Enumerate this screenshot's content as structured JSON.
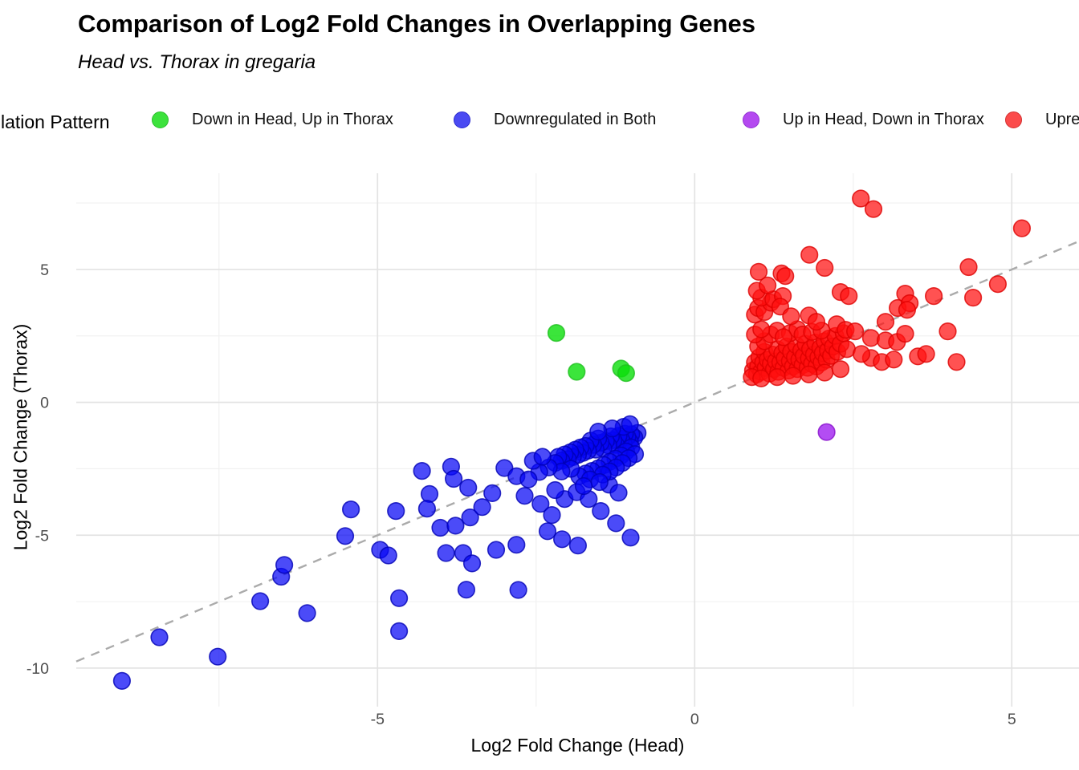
{
  "header": {
    "title": "Comparison of Log2 Fold Changes in Overlapping Genes",
    "subtitle": "Head vs. Thorax in gregaria"
  },
  "legend": {
    "title": "Regulation Pattern",
    "items": [
      {
        "label": "Down in Head, Up in Thorax",
        "swatch": "#3CE23C",
        "swatch_border": "#2FBE2F"
      },
      {
        "label": "Downregulated in Both",
        "swatch": "#4A4AF2",
        "swatch_border": "#2B2BCE"
      },
      {
        "label": "Up in Head, Down in Thorax",
        "swatch": "#B449F0",
        "swatch_border": "#9232D2"
      },
      {
        "label": "Upregulated in Both",
        "swatch": "#FB4B4B",
        "swatch_border": "#D33030"
      }
    ]
  },
  "chart_data": {
    "type": "scatter",
    "title": "Comparison of Log2 Fold Changes in Overlapping Genes",
    "subtitle": "Head vs. Thorax in gregaria",
    "xlabel": "Log2 Fold Change (Head)",
    "ylabel": "Log2 Fold Change (Thorax)",
    "xlim": [
      -9.75,
      6.06
    ],
    "ylim": [
      -11.45,
      8.62
    ],
    "x_ticks": [
      -5,
      0,
      5
    ],
    "x_tick_labels": [
      "-5",
      "0",
      "5"
    ],
    "y_ticks": [
      5,
      0,
      -5,
      -10
    ],
    "y_tick_labels": [
      "5",
      "0",
      "-5",
      "-10"
    ],
    "x_minor_ticks": [
      -7.5,
      -2.5,
      2.5
    ],
    "y_minor_ticks": [
      7.5,
      2.5,
      -2.5,
      -7.5
    ],
    "grid": {
      "major_color": "#E3E3E3",
      "minor_color": "#F0F0F0"
    },
    "tick_label_color": "#4D4D4D",
    "reference_line": {
      "slope": 1,
      "intercept": 0,
      "style": "dashed",
      "color": "#ABABAB"
    },
    "legend_position": "top",
    "series": [
      {
        "name": "Downregulated in Both",
        "fill": "#0505F5",
        "fill_opacity": 0.72,
        "stroke": "#0000B4",
        "points": [
          [
            -9.03,
            -10.48
          ],
          [
            -8.44,
            -8.84
          ],
          [
            -7.52,
            -9.57
          ],
          [
            -6.85,
            -7.48
          ],
          [
            -6.11,
            -7.93
          ],
          [
            -6.52,
            -6.56
          ],
          [
            -6.47,
            -6.12
          ],
          [
            -5.42,
            -4.03
          ],
          [
            -4.71,
            -4.09
          ],
          [
            -5.51,
            -5.03
          ],
          [
            -4.96,
            -5.55
          ],
          [
            -4.83,
            -5.76
          ],
          [
            -4.66,
            -7.37
          ],
          [
            -4.66,
            -8.61
          ],
          [
            -4.3,
            -2.58
          ],
          [
            -3.84,
            -2.42
          ],
          [
            -3.8,
            -2.88
          ],
          [
            -3.57,
            -3.21
          ],
          [
            -4.18,
            -3.45
          ],
          [
            -4.22,
            -4.0
          ],
          [
            -4.01,
            -4.72
          ],
          [
            -3.77,
            -4.64
          ],
          [
            -3.54,
            -4.33
          ],
          [
            -3.35,
            -3.94
          ],
          [
            -3.19,
            -3.42
          ],
          [
            -3.0,
            -2.47
          ],
          [
            -2.81,
            -2.78
          ],
          [
            -2.68,
            -3.52
          ],
          [
            -2.43,
            -3.82
          ],
          [
            -2.25,
            -4.24
          ],
          [
            -2.05,
            -3.64
          ],
          [
            -1.86,
            -3.38
          ],
          [
            -1.67,
            -3.64
          ],
          [
            -1.48,
            -4.09
          ],
          [
            -1.24,
            -4.55
          ],
          [
            -2.32,
            -4.85
          ],
          [
            -2.09,
            -5.15
          ],
          [
            -1.84,
            -5.39
          ],
          [
            -2.81,
            -5.36
          ],
          [
            -3.92,
            -5.67
          ],
          [
            -3.65,
            -5.67
          ],
          [
            -3.13,
            -5.55
          ],
          [
            -3.51,
            -6.06
          ],
          [
            -2.78,
            -7.06
          ],
          [
            -3.6,
            -7.05
          ],
          [
            -1.01,
            -5.09
          ],
          [
            -1.35,
            -3.1
          ],
          [
            -1.2,
            -3.4
          ],
          [
            -0.9,
            -1.15
          ],
          [
            -0.95,
            -1.32
          ],
          [
            -1.0,
            -1.2
          ],
          [
            -1.02,
            -1.48
          ],
          [
            -1.06,
            -1.3
          ],
          [
            -1.1,
            -1.18
          ],
          [
            -1.12,
            -1.55
          ],
          [
            -1.16,
            -1.38
          ],
          [
            -1.2,
            -1.26
          ],
          [
            -1.24,
            -1.6
          ],
          [
            -1.28,
            -1.42
          ],
          [
            -1.32,
            -1.28
          ],
          [
            -1.36,
            -1.62
          ],
          [
            -1.4,
            -1.46
          ],
          [
            -1.44,
            -1.74
          ],
          [
            -1.48,
            -1.52
          ],
          [
            -1.52,
            -1.36
          ],
          [
            -1.56,
            -1.78
          ],
          [
            -1.6,
            -1.6
          ],
          [
            -1.64,
            -1.44
          ],
          [
            -1.68,
            -1.82
          ],
          [
            -1.72,
            -1.64
          ],
          [
            -1.76,
            -1.9
          ],
          [
            -1.8,
            -1.7
          ],
          [
            -1.84,
            -1.98
          ],
          [
            -1.88,
            -1.78
          ],
          [
            -1.92,
            -2.06
          ],
          [
            -1.96,
            -1.88
          ],
          [
            -2.0,
            -2.14
          ],
          [
            -2.05,
            -1.96
          ],
          [
            -2.1,
            -2.2
          ],
          [
            -2.15,
            -2.05
          ],
          [
            -2.2,
            -2.28
          ],
          [
            -1.0,
            -1.7
          ],
          [
            -1.08,
            -1.85
          ],
          [
            -1.16,
            -2.0
          ],
          [
            -1.25,
            -2.12
          ],
          [
            -1.34,
            -2.24
          ],
          [
            -1.43,
            -2.36
          ],
          [
            -1.52,
            -2.48
          ],
          [
            -1.62,
            -2.58
          ],
          [
            -1.72,
            -2.68
          ],
          [
            -1.82,
            -2.78
          ],
          [
            -0.94,
            -1.95
          ],
          [
            -1.04,
            -2.1
          ],
          [
            -1.14,
            -2.28
          ],
          [
            -1.24,
            -2.45
          ],
          [
            -1.34,
            -2.6
          ],
          [
            -1.45,
            -2.72
          ],
          [
            -1.12,
            -0.92
          ],
          [
            -1.3,
            -0.98
          ],
          [
            -1.52,
            -1.1
          ],
          [
            -1.02,
            -0.82
          ],
          [
            -1.65,
            -2.9
          ],
          [
            -1.5,
            -3.0
          ],
          [
            -1.95,
            -2.5
          ],
          [
            -2.1,
            -2.6
          ],
          [
            -2.3,
            -2.45
          ],
          [
            -2.45,
            -2.62
          ],
          [
            -2.55,
            -2.2
          ],
          [
            -2.4,
            -2.05
          ],
          [
            -2.62,
            -2.9
          ],
          [
            -1.75,
            -3.15
          ],
          [
            -2.2,
            -3.3
          ]
        ]
      },
      {
        "name": "Down in Head, Up in Thorax",
        "fill": "#0ADF0A",
        "fill_opacity": 0.8,
        "stroke": "#1FBF1F",
        "points": [
          [
            -2.18,
            2.61
          ],
          [
            -1.86,
            1.15
          ],
          [
            -1.16,
            1.27
          ],
          [
            -1.08,
            1.1
          ]
        ]
      },
      {
        "name": "Up in Head, Down in Thorax",
        "fill": "#A020F0",
        "fill_opacity": 0.8,
        "stroke": "#8812CC",
        "points": [
          [
            2.08,
            -1.12
          ]
        ]
      },
      {
        "name": "Upregulated in Both",
        "fill": "#FF0F0F",
        "fill_opacity": 0.72,
        "stroke": "#DD0000",
        "points": [
          [
            0.92,
            1.2
          ],
          [
            0.95,
            1.5
          ],
          [
            0.98,
            1.05
          ],
          [
            1.0,
            1.35
          ],
          [
            1.02,
            1.7
          ],
          [
            1.05,
            1.15
          ],
          [
            1.08,
            1.5
          ],
          [
            1.1,
            1.9
          ],
          [
            1.12,
            1.3
          ],
          [
            1.15,
            1.6
          ],
          [
            1.18,
            1.08
          ],
          [
            1.2,
            1.45
          ],
          [
            1.22,
            1.8
          ],
          [
            1.25,
            1.25
          ],
          [
            1.28,
            1.55
          ],
          [
            1.3,
            2.0
          ],
          [
            1.32,
            1.15
          ],
          [
            1.35,
            1.5
          ],
          [
            1.38,
            1.85
          ],
          [
            1.4,
            1.3
          ],
          [
            1.42,
            1.65
          ],
          [
            1.45,
            2.1
          ],
          [
            1.48,
            1.2
          ],
          [
            1.5,
            1.55
          ],
          [
            1.52,
            1.9
          ],
          [
            1.55,
            1.35
          ],
          [
            1.58,
            1.7
          ],
          [
            1.6,
            2.15
          ],
          [
            1.62,
            1.25
          ],
          [
            1.65,
            1.6
          ],
          [
            1.68,
            1.95
          ],
          [
            1.7,
            1.4
          ],
          [
            1.72,
            1.75
          ],
          [
            1.75,
            2.2
          ],
          [
            1.78,
            1.3
          ],
          [
            1.8,
            1.65
          ],
          [
            1.82,
            2.0
          ],
          [
            1.85,
            1.45
          ],
          [
            1.88,
            1.8
          ],
          [
            1.9,
            2.25
          ],
          [
            1.92,
            1.35
          ],
          [
            1.95,
            1.7
          ],
          [
            1.98,
            2.05
          ],
          [
            2.0,
            1.5
          ],
          [
            2.02,
            1.85
          ],
          [
            2.05,
            2.3
          ],
          [
            2.08,
            1.6
          ],
          [
            2.1,
            1.95
          ],
          [
            2.12,
            2.4
          ],
          [
            2.15,
            1.75
          ],
          [
            2.18,
            2.1
          ],
          [
            2.22,
            2.5
          ],
          [
            2.25,
            1.9
          ],
          [
            2.3,
            2.2
          ],
          [
            2.35,
            2.6
          ],
          [
            2.4,
            2.0
          ],
          [
            1.0,
            2.1
          ],
          [
            1.1,
            2.3
          ],
          [
            1.2,
            2.55
          ],
          [
            1.3,
            2.7
          ],
          [
            0.95,
            2.55
          ],
          [
            1.05,
            2.75
          ],
          [
            1.5,
            2.6
          ],
          [
            1.62,
            2.75
          ],
          [
            1.4,
            2.45
          ],
          [
            1.7,
            2.55
          ],
          [
            1.85,
            2.65
          ],
          [
            2.0,
            2.7
          ],
          [
            0.9,
            0.95
          ],
          [
            1.05,
            0.9
          ],
          [
            1.3,
            0.95
          ],
          [
            1.55,
            1.0
          ],
          [
            1.8,
            1.05
          ],
          [
            2.05,
            1.12
          ],
          [
            2.3,
            1.25
          ],
          [
            0.95,
            3.3
          ],
          [
            1.0,
            3.55
          ],
          [
            1.1,
            3.4
          ],
          [
            1.2,
            3.75
          ],
          [
            1.05,
            3.94
          ],
          [
            1.24,
            3.88
          ],
          [
            1.39,
            4.0
          ],
          [
            1.35,
            3.6
          ],
          [
            1.52,
            3.24
          ],
          [
            1.8,
            3.27
          ],
          [
            1.92,
            3.03
          ],
          [
            2.24,
            2.94
          ],
          [
            2.38,
            2.73
          ],
          [
            2.53,
            2.67
          ],
          [
            2.78,
            2.42
          ],
          [
            3.01,
            2.33
          ],
          [
            3.19,
            2.27
          ],
          [
            3.32,
            2.58
          ],
          [
            3.01,
            3.03
          ],
          [
            3.2,
            3.55
          ],
          [
            2.3,
            4.15
          ],
          [
            2.43,
            4.0
          ],
          [
            3.32,
            4.09
          ],
          [
            3.39,
            3.73
          ],
          [
            3.77,
            4.0
          ],
          [
            3.99,
            2.67
          ],
          [
            1.01,
            4.91
          ],
          [
            1.37,
            4.85
          ],
          [
            1.43,
            4.75
          ],
          [
            2.05,
            5.06
          ],
          [
            1.81,
            5.55
          ],
          [
            2.62,
            7.67
          ],
          [
            2.82,
            7.27
          ],
          [
            5.16,
            6.55
          ],
          [
            4.32,
            5.09
          ],
          [
            4.78,
            4.45
          ],
          [
            2.78,
            1.67
          ],
          [
            2.95,
            1.52
          ],
          [
            3.14,
            1.61
          ],
          [
            2.63,
            1.82
          ],
          [
            3.52,
            1.73
          ],
          [
            3.65,
            1.82
          ],
          [
            4.13,
            1.52
          ],
          [
            0.98,
            4.2
          ],
          [
            1.15,
            4.4
          ],
          [
            4.39,
            3.94
          ],
          [
            3.35,
            3.48
          ]
        ]
      }
    ]
  }
}
